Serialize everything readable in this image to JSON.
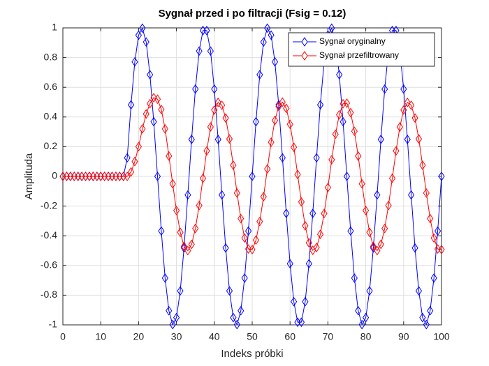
{
  "chart_data": {
    "type": "line",
    "title": "Sygnał przed i po filtracji (Fsig = 0.12)",
    "xlabel": "Indeks próbki",
    "ylabel": "Amplituda",
    "x": [
      0,
      1,
      2,
      3,
      4,
      5,
      6,
      7,
      8,
      9,
      10,
      11,
      12,
      13,
      14,
      15,
      16,
      17,
      18,
      19,
      20,
      21,
      22,
      23,
      24,
      25,
      26,
      27,
      28,
      29,
      30,
      31,
      32,
      33,
      34,
      35,
      36,
      37,
      38,
      39,
      40,
      41,
      42,
      43,
      44,
      45,
      46,
      47,
      48,
      49,
      50,
      51,
      52,
      53,
      54,
      55,
      56,
      57,
      58,
      59,
      60,
      61,
      62,
      63,
      64,
      65,
      66,
      67,
      68,
      69,
      70,
      71,
      72,
      73,
      74,
      75,
      76,
      77,
      78,
      79,
      80,
      81,
      82,
      83,
      84,
      85,
      86,
      87,
      88,
      89,
      90,
      91,
      92,
      93,
      94,
      95,
      96,
      97,
      98,
      99,
      100
    ],
    "series": [
      {
        "name": "Sygnał oryginalny",
        "color": "#0000ff",
        "values": [
          0,
          0,
          0,
          0,
          0,
          0,
          0,
          0,
          0,
          0,
          0,
          0,
          0,
          0,
          0,
          0,
          0,
          0.125,
          0.482,
          0.771,
          0.951,
          0.998,
          0.905,
          0.685,
          0.368,
          0,
          -0.368,
          -0.685,
          -0.905,
          -0.998,
          -0.951,
          -0.771,
          -0.482,
          -0.125,
          0.249,
          0.588,
          0.844,
          0.982,
          0.982,
          0.844,
          0.588,
          0.249,
          -0.125,
          -0.482,
          -0.771,
          -0.951,
          -0.998,
          -0.905,
          -0.685,
          -0.368,
          0,
          0.368,
          0.685,
          0.905,
          0.998,
          0.951,
          0.771,
          0.482,
          0.125,
          -0.249,
          -0.588,
          -0.844,
          -0.982,
          -0.982,
          -0.844,
          -0.588,
          -0.249,
          0.125,
          0.482,
          0.771,
          0.951,
          0.998,
          0.905,
          0.685,
          0.368,
          0,
          -0.368,
          -0.685,
          -0.905,
          -0.998,
          -0.951,
          -0.771,
          -0.482,
          -0.125,
          0.249,
          0.588,
          0.844,
          0.982,
          0.982,
          0.844,
          0.588,
          0.249,
          -0.125,
          -0.482,
          -0.771,
          -0.951,
          -0.998,
          -0.905,
          -0.685,
          -0.368,
          0
        ]
      },
      {
        "name": "Sygnał przefiltrowany",
        "color": "#ff0000",
        "values": [
          0,
          0,
          0,
          0,
          0,
          0,
          0,
          0,
          0,
          0,
          0,
          0,
          0,
          0,
          0,
          0,
          0,
          0,
          0.03,
          0.1,
          0.2,
          0.32,
          0.42,
          0.49,
          0.53,
          0.52,
          0.45,
          0.32,
          0.137,
          -0.05,
          -0.23,
          -0.377,
          -0.471,
          -0.5,
          -0.458,
          -0.351,
          -0.196,
          -0.013,
          0.172,
          0.333,
          0.447,
          0.498,
          0.479,
          0.393,
          0.252,
          0.075,
          -0.112,
          -0.284,
          -0.415,
          -0.489,
          -0.493,
          -0.429,
          -0.304,
          -0.137,
          0.05,
          0.23,
          0.377,
          0.471,
          0.5,
          0.458,
          0.351,
          0.196,
          0.013,
          -0.172,
          -0.333,
          -0.447,
          -0.498,
          -0.479,
          -0.39,
          -0.25,
          -0.075,
          0.112,
          0.284,
          0.415,
          0.489,
          0.493,
          0.429,
          0.304,
          0.137,
          -0.05,
          -0.23,
          -0.377,
          -0.471,
          -0.5,
          -0.458,
          -0.351,
          -0.196,
          -0.013,
          0.172,
          0.333,
          0.447,
          0.498,
          0.479,
          0.393,
          0.252,
          0.075,
          -0.112,
          -0.284,
          -0.415,
          -0.489,
          -0.493
        ]
      }
    ],
    "xlim": [
      0,
      100
    ],
    "xticks": [
      0,
      10,
      20,
      30,
      40,
      50,
      60,
      70,
      80,
      90,
      100
    ],
    "ylim": [
      -1,
      1
    ],
    "yticks": [
      -1,
      -0.8,
      -0.6,
      -0.4,
      -0.2,
      0,
      0.2,
      0.4,
      0.6,
      0.8,
      1
    ],
    "grid": true,
    "legend": "northeast",
    "marker": "diamond"
  }
}
